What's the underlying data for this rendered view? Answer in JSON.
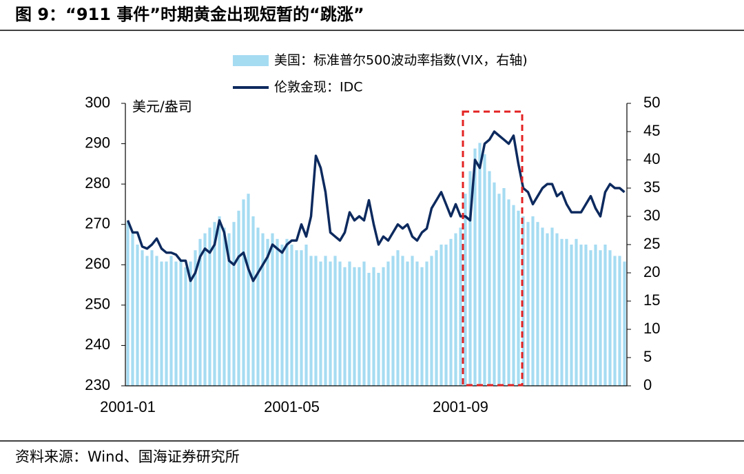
{
  "chart_data": {
    "type": "bar-line",
    "title": "图 9：“911 事件”时期黄金出现短暂的“跳涨”",
    "source": "资料来源：Wind、国海证券研究所",
    "y_label": "美元/盎司",
    "categories": [
      "2001-01",
      null,
      null,
      null,
      null,
      null,
      null,
      null,
      null,
      null,
      null,
      null,
      null,
      null,
      null,
      null,
      null,
      null,
      null,
      null,
      null,
      null,
      null,
      null,
      null,
      null,
      null,
      null,
      null,
      null,
      null,
      null,
      null,
      null,
      "2001-05",
      null,
      null,
      null,
      null,
      null,
      null,
      null,
      null,
      null,
      null,
      null,
      null,
      null,
      null,
      null,
      null,
      null,
      null,
      null,
      null,
      null,
      null,
      null,
      null,
      null,
      null,
      null,
      null,
      null,
      null,
      null,
      null,
      null,
      null,
      "2001-09",
      null,
      null,
      null,
      null,
      null,
      null,
      null,
      null,
      null,
      null,
      null,
      null,
      null,
      null,
      null,
      null,
      null,
      null,
      null,
      null,
      null,
      null,
      null,
      null,
      null,
      null,
      null,
      null,
      null,
      null,
      null,
      null,
      null,
      null
    ],
    "series": [
      {
        "name": "美国：标准普尔500波动率指数(VIX，右轴)",
        "type": "bar",
        "axis": "y2",
        "color": "#a6dcf2",
        "values": [
          29,
          27,
          25,
          24,
          23,
          24,
          23,
          22,
          22,
          23,
          22,
          22,
          21,
          22,
          24,
          26,
          27,
          28,
          29,
          30,
          28,
          27,
          29,
          31,
          33,
          34,
          30,
          28,
          27,
          26,
          27,
          26,
          25,
          26,
          25,
          24,
          24,
          25,
          23,
          23,
          22,
          23,
          22,
          23,
          22,
          21,
          22,
          21,
          21,
          22,
          20,
          21,
          20,
          21,
          22,
          23,
          24,
          23,
          22,
          23,
          22,
          21,
          22,
          23,
          24,
          25,
          25,
          26,
          27,
          28,
          34,
          38,
          42,
          43,
          41,
          38,
          36,
          34,
          35,
          33,
          32,
          31,
          30,
          29,
          30,
          29,
          28,
          27,
          28,
          27,
          26,
          26,
          25,
          26,
          25,
          25,
          24,
          25,
          24,
          25,
          24,
          23,
          23,
          22
        ]
      },
      {
        "name": "伦敦金现：IDC",
        "type": "line",
        "axis": "y",
        "color": "#0d2a5e",
        "values": [
          271,
          268,
          268,
          264.5,
          264,
          265,
          266.5,
          264,
          263,
          263,
          262.5,
          261,
          261,
          256,
          258,
          262,
          264,
          263,
          265,
          271,
          268,
          261,
          260,
          262,
          263,
          259,
          256,
          258,
          260,
          262,
          265,
          264,
          263,
          265,
          266,
          266,
          270,
          267,
          272,
          287,
          284,
          278,
          268,
          267,
          266,
          268,
          273,
          271,
          272,
          271,
          276,
          270,
          265,
          267,
          266,
          268,
          270,
          269,
          270,
          267,
          266,
          268,
          269,
          274,
          276,
          278,
          275,
          272,
          275,
          272,
          272,
          271,
          286,
          284,
          290,
          291,
          293,
          292,
          291,
          290,
          292,
          285,
          279,
          278,
          275,
          277,
          279,
          280,
          280,
          277,
          278,
          275,
          273,
          273,
          273,
          275,
          277,
          274,
          272,
          278,
          280,
          279,
          279,
          278
        ]
      }
    ],
    "ylim": [
      230,
      300
    ],
    "yticks": [
      230,
      240,
      250,
      260,
      270,
      280,
      290,
      300
    ],
    "y2lim": [
      0,
      50
    ],
    "y2ticks": [
      0,
      5,
      10,
      15,
      20,
      25,
      30,
      35,
      40,
      45,
      50
    ]
  }
}
